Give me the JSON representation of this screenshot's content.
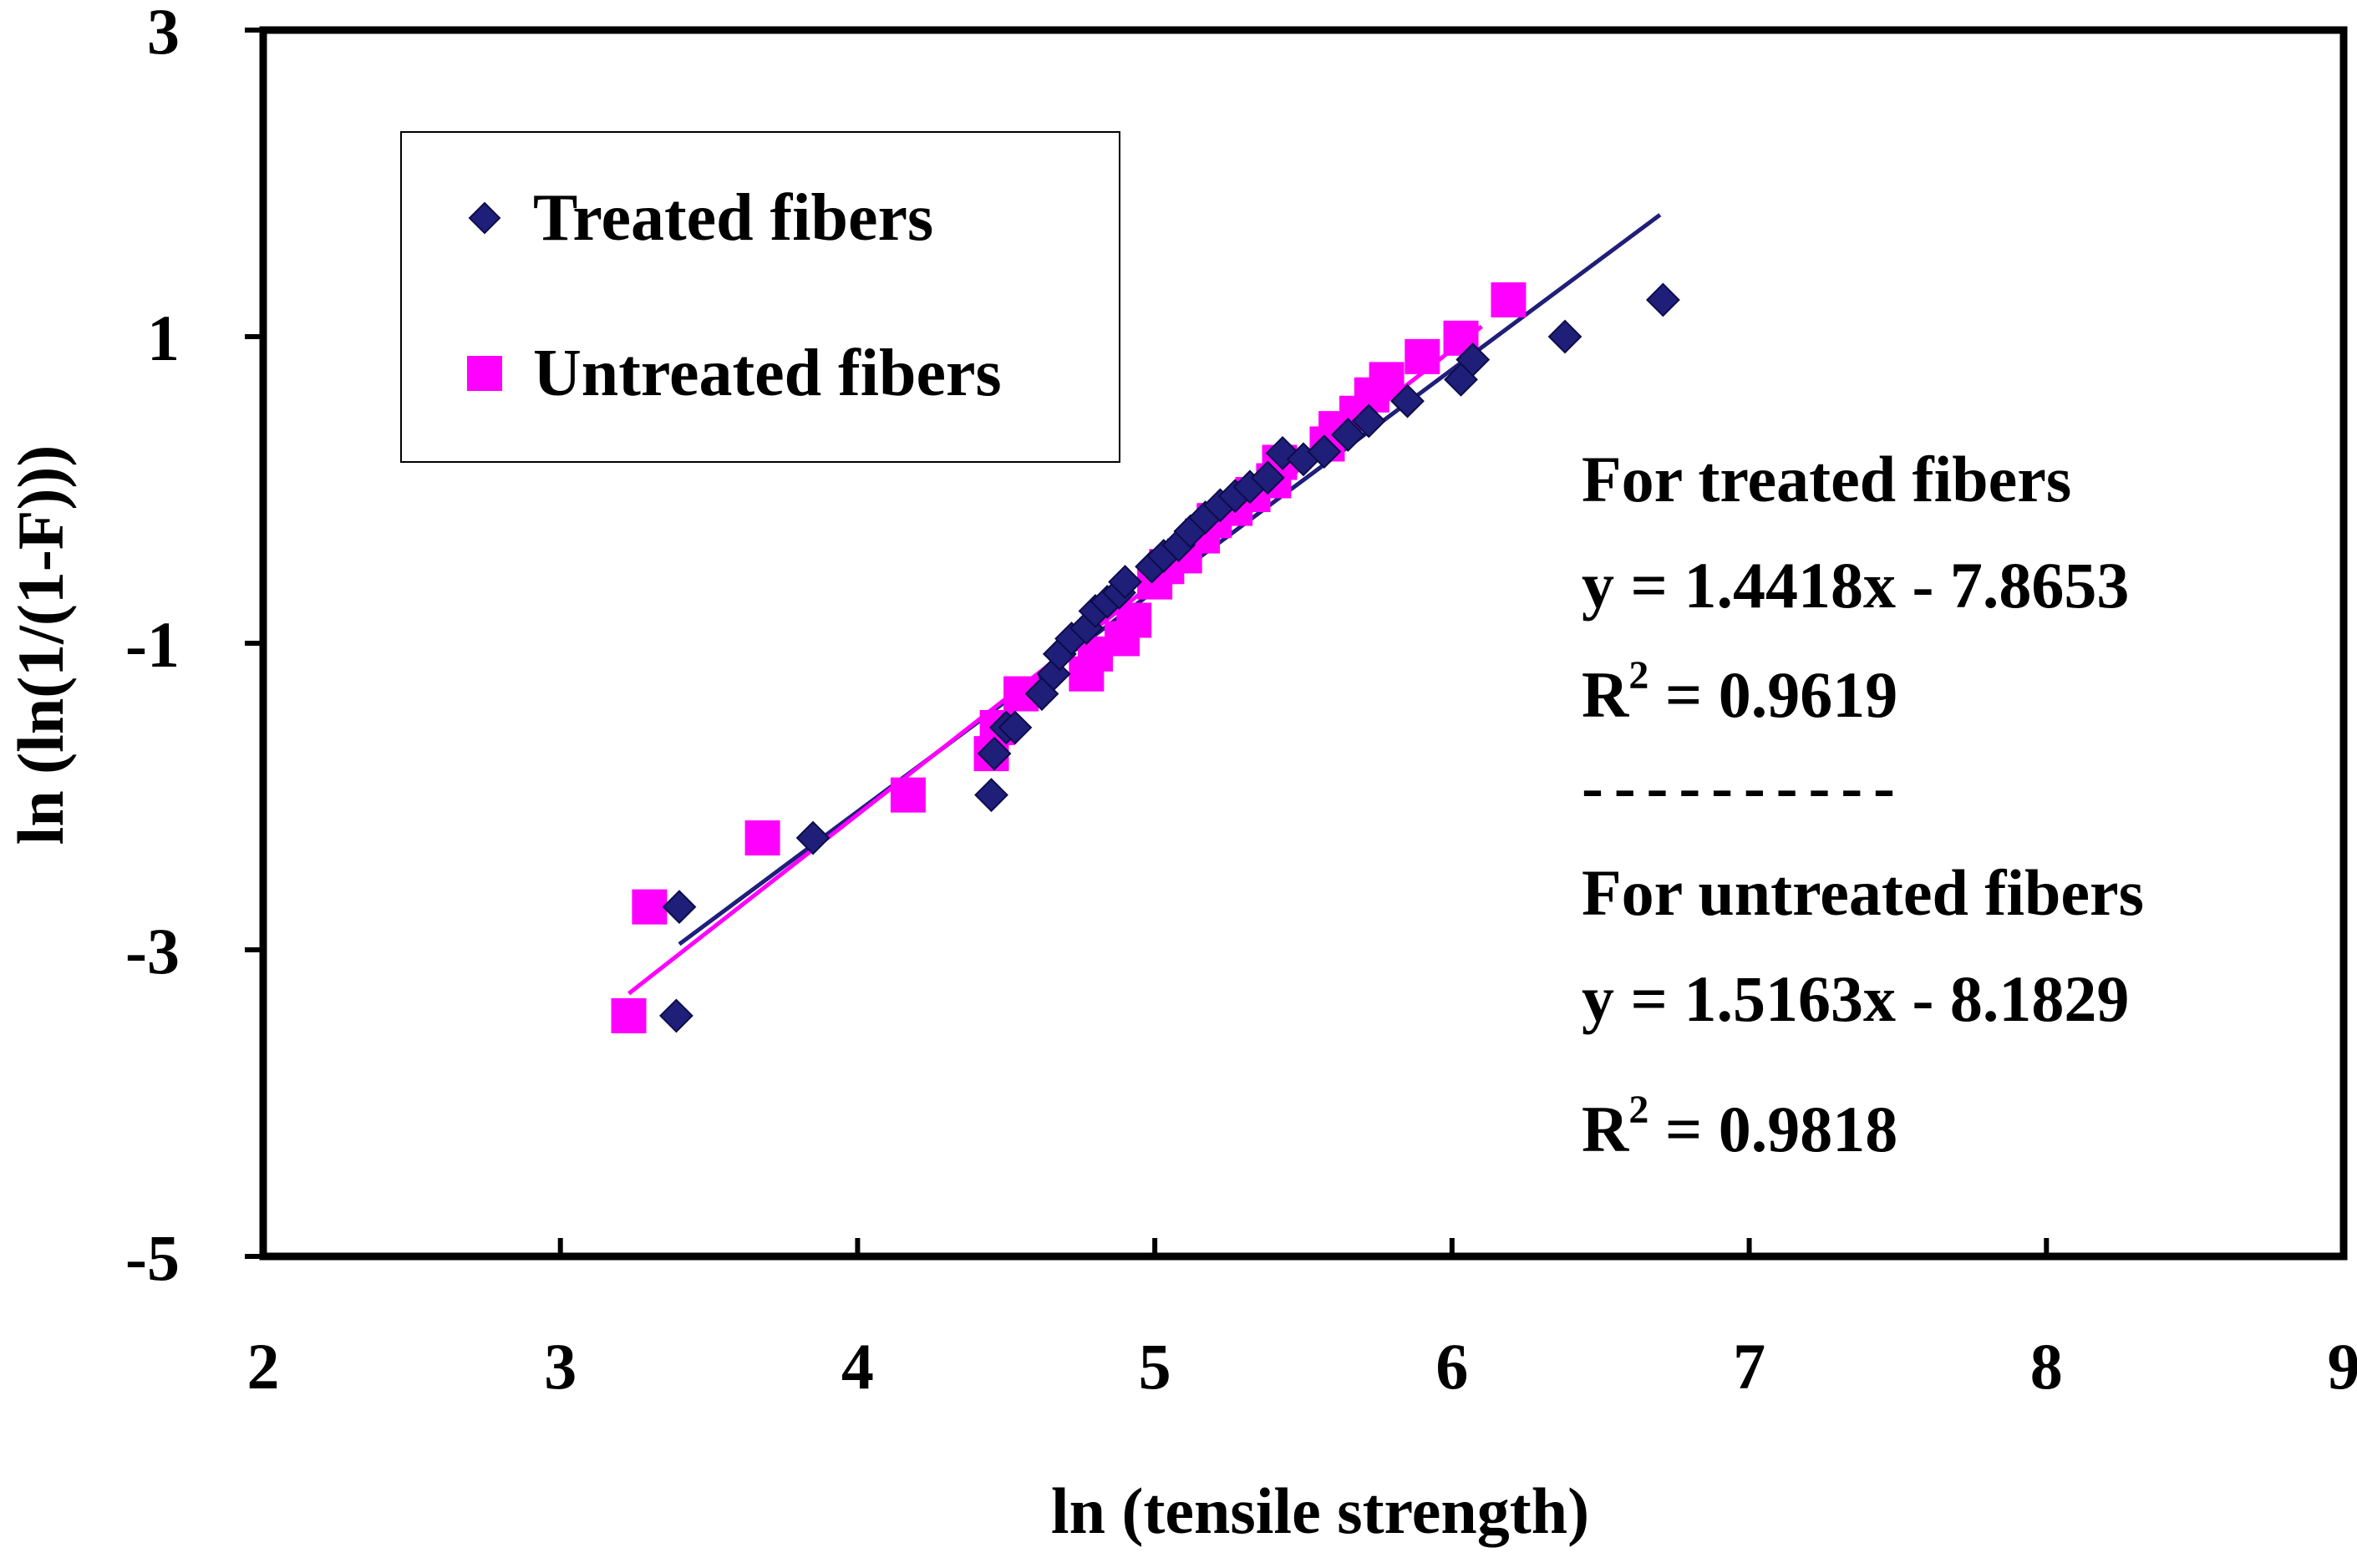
{
  "chart_data": {
    "type": "scatter",
    "title": "",
    "xlabel": "ln (tensile strength)",
    "ylabel": "ln (ln(1/(1-F)))",
    "xlim": [
      2,
      9
    ],
    "ylim": [
      -5,
      3
    ],
    "x_ticks": [
      2,
      3,
      4,
      5,
      6,
      7,
      8,
      9
    ],
    "y_ticks": [
      -5,
      -3,
      -1,
      1,
      3
    ],
    "legend_position": "top-left",
    "series": [
      {
        "name": "Treated fibers",
        "marker": "diamond",
        "color": "#1F1F7A",
        "points": [
          {
            "x": 3.39,
            "y": -3.43
          },
          {
            "x": 3.4,
            "y": -2.72
          },
          {
            "x": 3.85,
            "y": -2.27
          },
          {
            "x": 4.45,
            "y": -1.99
          },
          {
            "x": 4.46,
            "y": -1.72
          },
          {
            "x": 4.5,
            "y": -1.55
          },
          {
            "x": 4.53,
            "y": -1.55
          },
          {
            "x": 4.62,
            "y": -1.33
          },
          {
            "x": 4.66,
            "y": -1.2
          },
          {
            "x": 4.68,
            "y": -1.07
          },
          {
            "x": 4.72,
            "y": -0.97
          },
          {
            "x": 4.77,
            "y": -0.9
          },
          {
            "x": 4.8,
            "y": -0.79
          },
          {
            "x": 4.84,
            "y": -0.73
          },
          {
            "x": 4.88,
            "y": -0.67
          },
          {
            "x": 4.9,
            "y": -0.6
          },
          {
            "x": 4.99,
            "y": -0.5
          },
          {
            "x": 5.03,
            "y": -0.43
          },
          {
            "x": 5.08,
            "y": -0.36
          },
          {
            "x": 5.12,
            "y": -0.27
          },
          {
            "x": 5.17,
            "y": -0.18
          },
          {
            "x": 5.22,
            "y": -0.1
          },
          {
            "x": 5.27,
            "y": -0.04
          },
          {
            "x": 5.32,
            "y": 0.02
          },
          {
            "x": 5.38,
            "y": 0.08
          },
          {
            "x": 5.43,
            "y": 0.24
          },
          {
            "x": 5.5,
            "y": 0.2
          },
          {
            "x": 5.57,
            "y": 0.25
          },
          {
            "x": 5.65,
            "y": 0.36
          },
          {
            "x": 5.72,
            "y": 0.45
          },
          {
            "x": 5.85,
            "y": 0.58
          },
          {
            "x": 6.03,
            "y": 0.72
          },
          {
            "x": 6.07,
            "y": 0.85
          },
          {
            "x": 6.38,
            "y": 1.0
          },
          {
            "x": 6.71,
            "y": 1.24
          }
        ],
        "trendline": {
          "slope": 1.4418,
          "intercept": -7.8653,
          "x_range": [
            3.4,
            6.7
          ]
        }
      },
      {
        "name": "Untreated fibers",
        "marker": "square",
        "color": "#FF00FF",
        "points": [
          {
            "x": 3.23,
            "y": -3.43
          },
          {
            "x": 3.3,
            "y": -2.72
          },
          {
            "x": 3.68,
            "y": -2.27
          },
          {
            "x": 4.17,
            "y": -1.99
          },
          {
            "x": 4.45,
            "y": -1.72
          },
          {
            "x": 4.47,
            "y": -1.55
          },
          {
            "x": 4.55,
            "y": -1.33
          },
          {
            "x": 4.77,
            "y": -1.2
          },
          {
            "x": 4.8,
            "y": -1.07
          },
          {
            "x": 4.89,
            "y": -0.97
          },
          {
            "x": 4.93,
            "y": -0.85
          },
          {
            "x": 5.0,
            "y": -0.6
          },
          {
            "x": 5.04,
            "y": -0.5
          },
          {
            "x": 5.1,
            "y": -0.43
          },
          {
            "x": 5.16,
            "y": -0.3
          },
          {
            "x": 5.2,
            "y": -0.2
          },
          {
            "x": 5.27,
            "y": -0.12
          },
          {
            "x": 5.33,
            "y": -0.03
          },
          {
            "x": 5.4,
            "y": 0.06
          },
          {
            "x": 5.42,
            "y": 0.18
          },
          {
            "x": 5.58,
            "y": 0.3
          },
          {
            "x": 5.61,
            "y": 0.4
          },
          {
            "x": 5.68,
            "y": 0.5
          },
          {
            "x": 5.73,
            "y": 0.62
          },
          {
            "x": 5.78,
            "y": 0.72
          },
          {
            "x": 5.9,
            "y": 0.87
          },
          {
            "x": 6.03,
            "y": 0.99
          },
          {
            "x": 6.19,
            "y": 1.24
          }
        ],
        "trendline": {
          "slope": 1.5163,
          "intercept": -8.1829,
          "x_range": [
            3.23,
            6.1
          ]
        }
      }
    ],
    "annotations": {
      "treated_heading": "For treated fibers",
      "treated_equation": "y = 1.4418x - 7.8653",
      "treated_r2_prefix": "R",
      "treated_r2_sup": "2",
      "treated_r2_value": " = 0.9619",
      "separator": "----------",
      "untreated_heading": "For untreated fibers",
      "untreated_equation": "y = 1.5163x - 8.1829",
      "untreated_r2_prefix": "R",
      "untreated_r2_sup": "2",
      "untreated_r2_value": " = 0.9818"
    }
  }
}
